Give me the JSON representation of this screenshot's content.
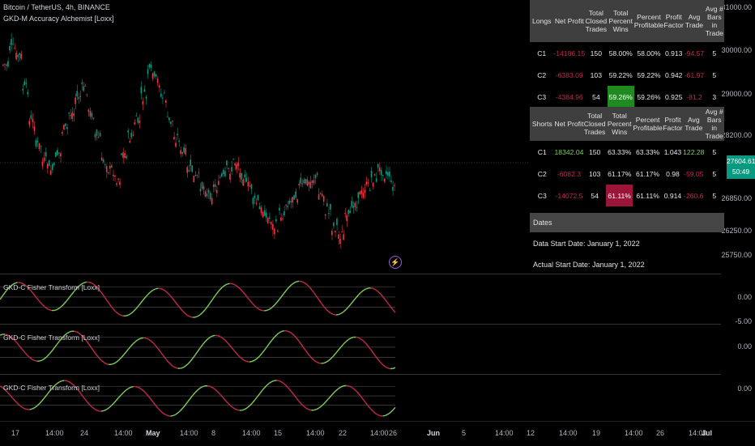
{
  "header": {
    "symbol_line": "Bitcoin / TetherUS, 4h, BINANCE",
    "indicator_line": "GKD-M Accuracy Alchemist [Loxx]"
  },
  "price_axis": [
    "31000.00",
    "30000.00",
    "29000.00",
    "28200.00",
    "26850.00",
    "26250.00",
    "25750.00"
  ],
  "last_price": {
    "value": "27604.61",
    "countdown": "50:49"
  },
  "colors": {
    "up": "#089981",
    "down": "#f23645",
    "green_line": "#7ecf5a",
    "red_line": "#c2294a",
    "win_green": "#1f8a1f",
    "win_red": "#9b1538"
  },
  "stats": {
    "longs_header": [
      "Longs",
      "Net Profit",
      "Total Closed Trades",
      "Total Percent Wins",
      "Percent Profitable",
      "Profit Factor",
      "Avg Trade",
      "Avg # Bars in Trade"
    ],
    "longs_rows": [
      [
        "C1",
        "-14186.15",
        "150",
        "58.00%",
        "58.00%",
        "0.913",
        "-94.57",
        "5"
      ],
      [
        "C2",
        "-6383.09",
        "103",
        "59.22%",
        "59.22%",
        "0.942",
        "-61.97",
        "5"
      ],
      [
        "C3",
        "-4384.96",
        "54",
        "59.26%",
        "59.26%",
        "0.925",
        "-81.2",
        "3"
      ]
    ],
    "shorts_header": [
      "Shorts",
      "Net Profit",
      "Total Closed Trades",
      "Total Percent Wins",
      "Percent Profitable",
      "Profit Factor",
      "Avg Trade",
      "Avg # Bars in Trade"
    ],
    "shorts_rows": [
      [
        "C1",
        "18342.04",
        "150",
        "63.33%",
        "63.33%",
        "1.043",
        "122.28",
        "5"
      ],
      [
        "C2",
        "-6082.3",
        "103",
        "61.17%",
        "61.17%",
        "0.98",
        "-59.05",
        "5"
      ],
      [
        "C3",
        "-14072.5",
        "54",
        "61.11%",
        "61.11%",
        "0.914",
        "-260.6",
        "5"
      ]
    ],
    "dates_label": "Dates",
    "data_start": "Data Start Date: January 1, 2022",
    "actual_start": "Actual Start Date: January 1, 2022"
  },
  "panes": [
    {
      "label": "GKD-C Fisher Transform [Loxx]",
      "value": "0.00",
      "value2": "-5.00"
    },
    {
      "label": "GKD-C Fisher Transform [Loxx]",
      "value": "0.00"
    },
    {
      "label": "GKD-C Fisher Transform [Loxx]",
      "value": "0.00"
    }
  ],
  "time_axis": [
    "17",
    "14:00",
    "24",
    "14:00",
    "May",
    "14:00",
    "8",
    "14:00",
    "15",
    "14:00",
    "22",
    "14:00",
    "26",
    "Jun",
    "5",
    "14:00",
    "12",
    "14:00",
    "19",
    "14:00",
    "26",
    "14:00",
    "Jul"
  ]
}
